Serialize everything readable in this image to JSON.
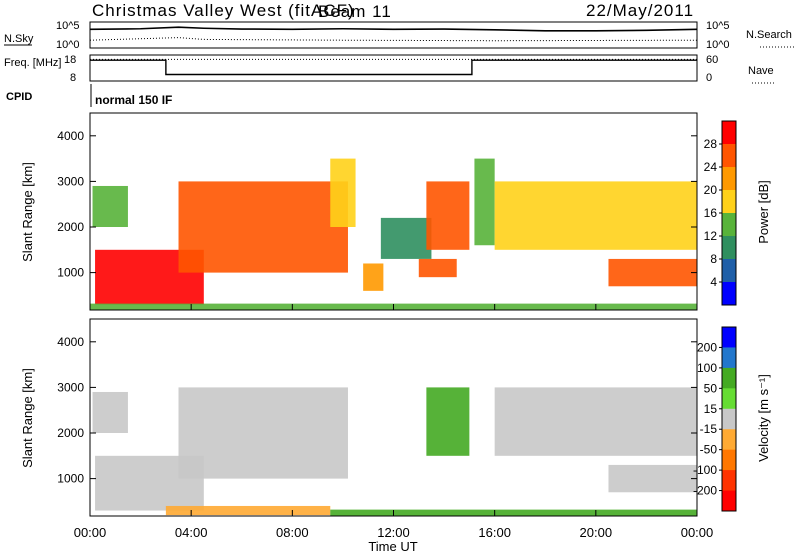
{
  "header": {
    "station": "Christmas Valley West (fitACF)",
    "beam": "Beam 11",
    "date": "22/May/2011"
  },
  "colors": {
    "power": [
      "#0000ff",
      "#1f5fa8",
      "#2f8f5f",
      "#58b33a",
      "#ffd11a",
      "#ff9900",
      "#ff5500",
      "#ff0000"
    ],
    "velocity": [
      "#0000ff",
      "#2277cc",
      "#44aa22",
      "#66dd33",
      "#c8c8c8",
      "#ffaa33",
      "#ff7700",
      "#ff3300",
      "#ff0000"
    ],
    "ground_scatter": "#c8c8c8"
  },
  "chart_data": [
    {
      "type": "line",
      "panel": "noise",
      "left_label": "N.Sky",
      "right_label": "N.Search",
      "left_ticks": [
        "10^5",
        "10^0"
      ],
      "right_ticks": [
        "10^5",
        "10^0"
      ],
      "series": [
        {
          "name": "N.Sky",
          "style": "solid",
          "x": [
            0,
            2,
            3.5,
            4.5,
            6,
            8,
            10,
            12,
            14,
            16,
            18,
            20,
            22,
            24
          ],
          "y": [
            0.72,
            0.74,
            0.8,
            0.76,
            0.73,
            0.72,
            0.74,
            0.72,
            0.73,
            0.7,
            0.66,
            0.66,
            0.68,
            0.72
          ]
        },
        {
          "name": "N.Search",
          "style": "dotted",
          "x": [
            0,
            3.5,
            4.5,
            10,
            16,
            24
          ],
          "y": [
            0.3,
            0.4,
            0.33,
            0.3,
            0.28,
            0.3
          ]
        }
      ]
    },
    {
      "type": "line",
      "panel": "frequency",
      "left_label": "Freq. [MHz]",
      "left_ticks": [
        "18",
        "8"
      ],
      "right_label": "Nave",
      "right_ticks": [
        "60",
        "0"
      ],
      "ylim": [
        8,
        18
      ],
      "series": [
        {
          "name": "Freq.",
          "style": "solid",
          "x": [
            0,
            3,
            3,
            15.1,
            15.1,
            24
          ],
          "y": [
            16,
            16,
            10.5,
            10.5,
            16,
            16
          ]
        },
        {
          "name": "Nave",
          "style": "dotted",
          "x": [
            0,
            24
          ],
          "y": [
            50,
            50
          ]
        }
      ]
    },
    {
      "type": "text",
      "panel": "cpid",
      "label": "CPID",
      "program": "normal 150 IF"
    },
    {
      "type": "heatmap",
      "panel": "power",
      "ylabel": "Slant Range [km]",
      "yticks": [
        "4000",
        "3000",
        "2000",
        "1000"
      ],
      "ytick_values": [
        4000,
        3000,
        2000,
        1000
      ],
      "ylim": [
        180,
        4500
      ],
      "xlim": [
        0,
        24
      ],
      "colorbar_label": "Power [dB]",
      "colorbar_ticks": [
        "28",
        "24",
        "20",
        "16",
        "12",
        "8",
        "4"
      ],
      "colorbar_range": [
        0,
        32
      ],
      "regions": [
        {
          "t0": 0.2,
          "t1": 4.5,
          "r0": 300,
          "r1": 1500,
          "val": 29
        },
        {
          "t0": 3.5,
          "t1": 10.2,
          "r0": 1000,
          "r1": 3000,
          "val": 27
        },
        {
          "t0": 0.1,
          "t1": 1.5,
          "r0": 2000,
          "r1": 2900,
          "val": 14
        },
        {
          "t0": 9.5,
          "t1": 10.5,
          "r0": 2000,
          "r1": 3500,
          "val": 18
        },
        {
          "t0": 10.8,
          "t1": 11.6,
          "r0": 600,
          "r1": 1200,
          "val": 20
        },
        {
          "t0": 11.5,
          "t1": 13.5,
          "r0": 1300,
          "r1": 2200,
          "val": 10
        },
        {
          "t0": 13.3,
          "t1": 15.0,
          "r0": 1500,
          "r1": 3000,
          "val": 26
        },
        {
          "t0": 13.0,
          "t1": 14.5,
          "r0": 900,
          "r1": 1300,
          "val": 24
        },
        {
          "t0": 15.2,
          "t1": 16.0,
          "r0": 1600,
          "r1": 3500,
          "val": 14
        },
        {
          "t0": 16.0,
          "t1": 24.0,
          "r0": 1500,
          "r1": 3000,
          "val": 18
        },
        {
          "t0": 20.5,
          "t1": 24.0,
          "r0": 700,
          "r1": 1300,
          "val": 25
        },
        {
          "t0": 0,
          "t1": 24,
          "r0": 180,
          "r1": 320,
          "val": 12
        }
      ]
    },
    {
      "type": "heatmap",
      "panel": "velocity",
      "ylabel": "Slant Range [km]",
      "yticks": [
        "4000",
        "3000",
        "2000",
        "1000"
      ],
      "ytick_values": [
        4000,
        3000,
        2000,
        1000
      ],
      "ylim": [
        180,
        4500
      ],
      "xlim": [
        0,
        24
      ],
      "xticks": [
        "00:00",
        "04:00",
        "08:00",
        "12:00",
        "16:00",
        "20:00",
        "00:00"
      ],
      "xlabel": "Time UT",
      "colorbar_label": "Velocity [m s⁻¹]",
      "colorbar_ticks": [
        "200",
        "100",
        "50",
        "15",
        "-15",
        "-50",
        "-100",
        "-200"
      ],
      "colorbar_range": [
        -250,
        250
      ],
      "regions": [
        {
          "t0": 0.2,
          "t1": 4.5,
          "r0": 300,
          "r1": 1500,
          "val": 0
        },
        {
          "t0": 3.5,
          "t1": 10.2,
          "r0": 1000,
          "r1": 3000,
          "val": 0
        },
        {
          "t0": 0.1,
          "t1": 1.5,
          "r0": 2000,
          "r1": 2900,
          "val": 0
        },
        {
          "t0": 13.3,
          "t1": 15.0,
          "r0": 1500,
          "r1": 3000,
          "val": 30
        },
        {
          "t0": 16.0,
          "t1": 24.0,
          "r0": 1500,
          "r1": 3000,
          "val": 0
        },
        {
          "t0": 20.5,
          "t1": 24.0,
          "r0": 700,
          "r1": 1300,
          "val": 0
        },
        {
          "t0": 3.0,
          "t1": 9.5,
          "r0": 200,
          "r1": 400,
          "val": -40
        },
        {
          "t0": 9.5,
          "t1": 24.0,
          "r0": 180,
          "r1": 320,
          "val": 40
        }
      ]
    }
  ]
}
